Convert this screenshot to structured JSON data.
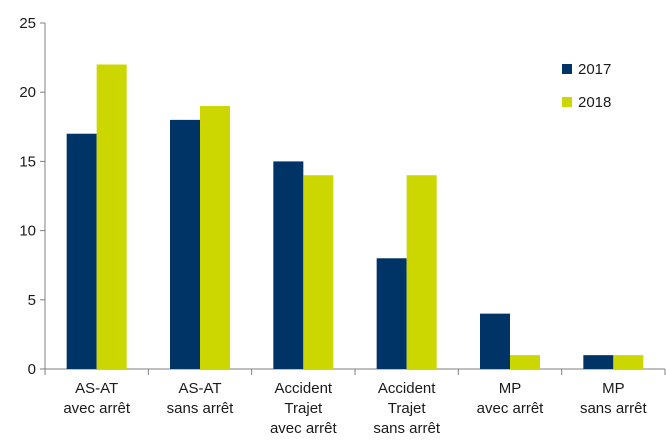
{
  "chart_data": {
    "type": "bar",
    "categories": [
      [
        "AS-AT",
        "avec arrêt"
      ],
      [
        "AS-AT",
        "sans arrêt"
      ],
      [
        "Accident",
        "Trajet",
        "avec arrêt"
      ],
      [
        "Accident",
        "Trajet",
        "sans arrêt"
      ],
      [
        "MP",
        "avec arrêt"
      ],
      [
        "MP",
        "sans arrêt"
      ]
    ],
    "series": [
      {
        "name": "2017",
        "color": "#003366",
        "values": [
          17,
          18,
          15,
          8,
          4,
          1
        ]
      },
      {
        "name": "2018",
        "color": "#ccd600",
        "values": [
          22,
          19,
          14,
          14,
          1,
          1
        ]
      }
    ],
    "ylim": [
      0,
      25
    ],
    "yticks": [
      0,
      5,
      10,
      15,
      20,
      25
    ],
    "grid": false,
    "legend": "right"
  }
}
